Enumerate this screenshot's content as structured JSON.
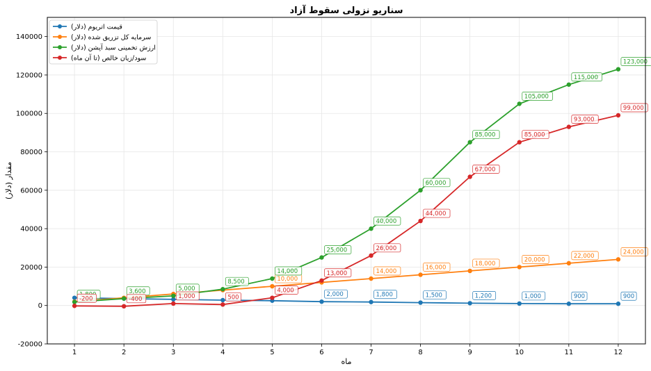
{
  "chart_data": {
    "type": "line",
    "title": "سناریو نزولی سقوط آزاد",
    "xlabel": "ماه",
    "ylabel": "مقدار (دلار)",
    "x": [
      1,
      2,
      3,
      4,
      5,
      6,
      7,
      8,
      9,
      10,
      11,
      12
    ],
    "xlim": [
      0.45,
      12.55
    ],
    "ylim": [
      -20000,
      150000
    ],
    "yticks": [
      -20000,
      0,
      20000,
      40000,
      60000,
      80000,
      100000,
      120000,
      140000
    ],
    "grid": true,
    "legend_position": "top-left",
    "series": [
      {
        "name": "قیمت اتریوم (دلار)",
        "color": "#1f77b4",
        "values": [
          4000,
          3600,
          3200,
          2800,
          2500,
          2000,
          1800,
          1500,
          1200,
          1000,
          900,
          900
        ],
        "labels": [
          "4,000",
          "3,600",
          "3,200",
          "2,800",
          "2,500",
          "2,000",
          "1,800",
          "1,500",
          "1,200",
          "1,000",
          "900",
          "900"
        ],
        "label_points": [
          6,
          7,
          8,
          9,
          10,
          11,
          12
        ]
      },
      {
        "name": "سرمایه کل تزریق شده (دلار)",
        "color": "#ff7f0e",
        "values": [
          2000,
          4000,
          6000,
          8000,
          10000,
          12000,
          14000,
          16000,
          18000,
          20000,
          22000,
          24000
        ],
        "labels": [
          "2,000",
          "4,000",
          "6,000",
          "8,000",
          "10,000",
          "12,000",
          "14,000",
          "16,000",
          "18,000",
          "20,000",
          "22,000",
          "24,000"
        ],
        "label_points": [
          5,
          7,
          8,
          9,
          10,
          11,
          12
        ]
      },
      {
        "name": "ارزش تخمینی سبد آپشن (دلار)",
        "color": "#2ca02c",
        "values": [
          1800,
          3600,
          5000,
          8500,
          14000,
          25000,
          40000,
          60000,
          85000,
          105000,
          115000,
          123000
        ],
        "labels": [
          "1,800",
          "3,600",
          "5,000",
          "8,500",
          "14,000",
          "25,000",
          "40,000",
          "60,000",
          "85,000",
          "105,000",
          "115,000",
          "123,000"
        ],
        "label_points": [
          1,
          2,
          3,
          4,
          5,
          6,
          7,
          8,
          9,
          10,
          11,
          12
        ]
      },
      {
        "name": "سود/زیان خالص (تا آن ماه)",
        "color": "#d62728",
        "values": [
          -200,
          -400,
          1000,
          500,
          4000,
          13000,
          26000,
          44000,
          67000,
          85000,
          93000,
          99000
        ],
        "labels": [
          "-200",
          "-400",
          "1,000",
          "500",
          "4,000",
          "13,000",
          "26,000",
          "44,000",
          "67,000",
          "85,000",
          "93,000",
          "99,000"
        ],
        "label_points": [
          1,
          2,
          3,
          4,
          5,
          6,
          7,
          8,
          9,
          10,
          11,
          12
        ]
      }
    ]
  }
}
